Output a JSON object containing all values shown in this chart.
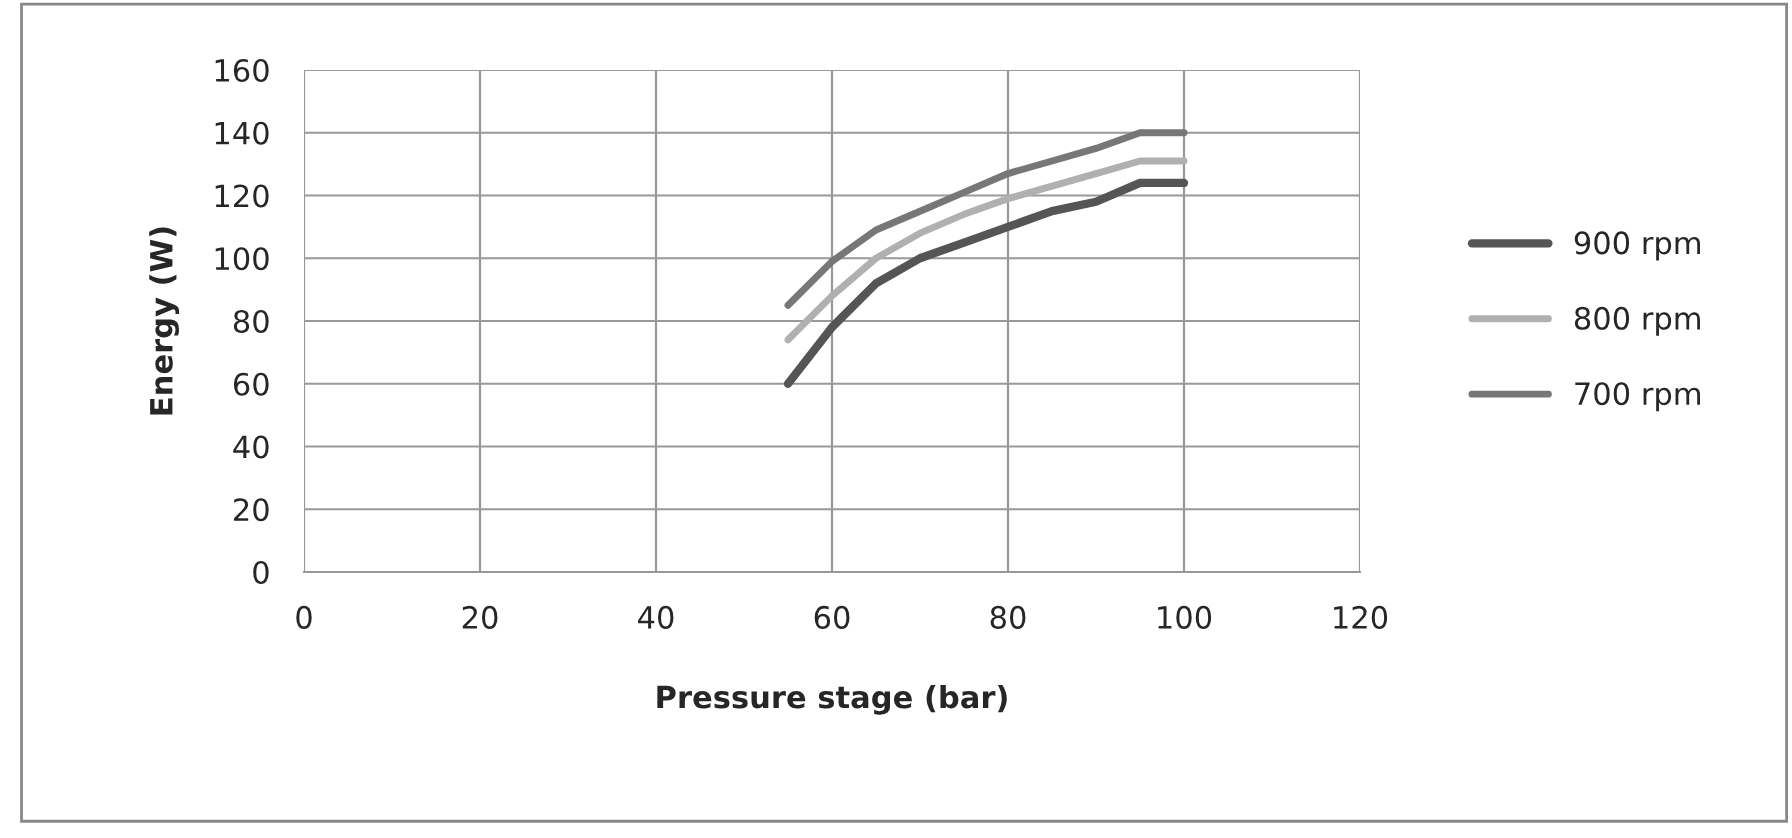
{
  "chart_data": {
    "type": "line",
    "xlabel": "Pressure stage (bar)",
    "ylabel": "Energy (W)",
    "x": [
      55,
      60,
      65,
      70,
      75,
      80,
      85,
      90,
      95,
      100
    ],
    "series": [
      {
        "name": "900 rpm",
        "color": "#555555",
        "values": [
          60,
          78,
          92,
          100,
          105,
          110,
          115,
          118,
          124,
          124
        ]
      },
      {
        "name": "800 rpm",
        "color": "#b0b0b0",
        "values": [
          74,
          88,
          100,
          108,
          114,
          119,
          123,
          127,
          131,
          131
        ]
      },
      {
        "name": "700 rpm",
        "color": "#777777",
        "values": [
          85,
          99,
          109,
          115,
          121,
          127,
          131,
          135,
          140,
          140
        ]
      }
    ],
    "xlim": [
      0,
      120
    ],
    "xticks": [
      0,
      20,
      40,
      60,
      80,
      100,
      120
    ],
    "ylim": [
      0,
      160
    ],
    "yticks": [
      0,
      20,
      40,
      60,
      80,
      100,
      120,
      140,
      160
    ],
    "grid": true,
    "legend": "right",
    "marker": "none",
    "line_style": "solid"
  }
}
